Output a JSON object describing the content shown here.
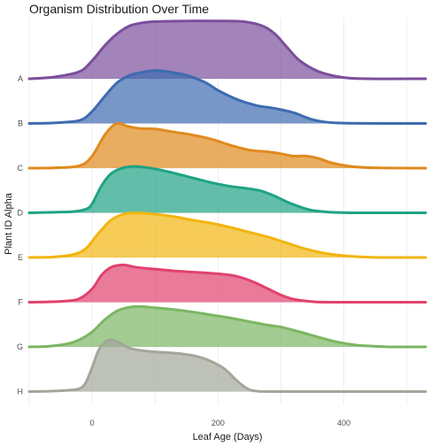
{
  "chart_data": {
    "type": "area",
    "subtype": "ridgeline",
    "title": "Organism Distribution Over Time",
    "xlabel": "Leaf Age (Days)",
    "ylabel": "Plant ID Alpha",
    "xlim": [
      -100,
      530
    ],
    "x_ticks": [
      0,
      200,
      400
    ],
    "grid": true,
    "legend": "none",
    "series": [
      {
        "name": "A",
        "color": "#7B4E9C",
        "points": [
          [
            -100,
            0
          ],
          [
            -60,
            0.03
          ],
          [
            -20,
            0.12
          ],
          [
            0,
            0.3
          ],
          [
            20,
            0.55
          ],
          [
            40,
            0.75
          ],
          [
            60,
            0.88
          ],
          [
            80,
            0.93
          ],
          [
            100,
            0.95
          ],
          [
            150,
            0.96
          ],
          [
            200,
            0.96
          ],
          [
            240,
            0.95
          ],
          [
            270,
            0.88
          ],
          [
            290,
            0.75
          ],
          [
            310,
            0.52
          ],
          [
            330,
            0.3
          ],
          [
            360,
            0.12
          ],
          [
            400,
            0.02
          ],
          [
            440,
            0
          ],
          [
            530,
            0
          ]
        ]
      },
      {
        "name": "B",
        "color": "#3D6BB0",
        "points": [
          [
            -100,
            0
          ],
          [
            -60,
            0.01
          ],
          [
            -20,
            0.05
          ],
          [
            0,
            0.2
          ],
          [
            20,
            0.45
          ],
          [
            40,
            0.68
          ],
          [
            60,
            0.8
          ],
          [
            80,
            0.85
          ],
          [
            100,
            0.88
          ],
          [
            120,
            0.86
          ],
          [
            150,
            0.8
          ],
          [
            180,
            0.68
          ],
          [
            200,
            0.55
          ],
          [
            230,
            0.4
          ],
          [
            260,
            0.3
          ],
          [
            290,
            0.25
          ],
          [
            320,
            0.18
          ],
          [
            340,
            0.1
          ],
          [
            360,
            0.04
          ],
          [
            400,
            0.005
          ],
          [
            530,
            0
          ]
        ]
      },
      {
        "name": "C",
        "color": "#E08A1E",
        "points": [
          [
            -100,
            0
          ],
          [
            -60,
            0.005
          ],
          [
            -20,
            0.04
          ],
          [
            0,
            0.2
          ],
          [
            20,
            0.55
          ],
          [
            35,
            0.72
          ],
          [
            45,
            0.74
          ],
          [
            55,
            0.7
          ],
          [
            75,
            0.66
          ],
          [
            100,
            0.65
          ],
          [
            130,
            0.6
          ],
          [
            160,
            0.55
          ],
          [
            190,
            0.48
          ],
          [
            220,
            0.38
          ],
          [
            250,
            0.3
          ],
          [
            280,
            0.27
          ],
          [
            300,
            0.24
          ],
          [
            320,
            0.2
          ],
          [
            340,
            0.2
          ],
          [
            360,
            0.16
          ],
          [
            380,
            0.09
          ],
          [
            410,
            0.03
          ],
          [
            450,
            0.005
          ],
          [
            530,
            0
          ]
        ]
      },
      {
        "name": "D",
        "color": "#1FA384",
        "points": [
          [
            -100,
            0
          ],
          [
            -60,
            0.01
          ],
          [
            -30,
            0.02
          ],
          [
            -10,
            0.06
          ],
          [
            0,
            0.15
          ],
          [
            15,
            0.45
          ],
          [
            30,
            0.65
          ],
          [
            50,
            0.75
          ],
          [
            70,
            0.77
          ],
          [
            100,
            0.73
          ],
          [
            130,
            0.66
          ],
          [
            160,
            0.58
          ],
          [
            190,
            0.5
          ],
          [
            220,
            0.44
          ],
          [
            250,
            0.4
          ],
          [
            270,
            0.36
          ],
          [
            290,
            0.28
          ],
          [
            310,
            0.18
          ],
          [
            330,
            0.1
          ],
          [
            350,
            0.04
          ],
          [
            380,
            0.01
          ],
          [
            420,
            0
          ],
          [
            530,
            0
          ]
        ]
      },
      {
        "name": "E",
        "color": "#F2B50F",
        "points": [
          [
            -100,
            0
          ],
          [
            -60,
            0.01
          ],
          [
            -30,
            0.05
          ],
          [
            -10,
            0.15
          ],
          [
            10,
            0.4
          ],
          [
            30,
            0.62
          ],
          [
            50,
            0.72
          ],
          [
            70,
            0.74
          ],
          [
            100,
            0.72
          ],
          [
            130,
            0.68
          ],
          [
            160,
            0.62
          ],
          [
            190,
            0.57
          ],
          [
            220,
            0.5
          ],
          [
            250,
            0.42
          ],
          [
            280,
            0.34
          ],
          [
            310,
            0.24
          ],
          [
            340,
            0.14
          ],
          [
            370,
            0.07
          ],
          [
            400,
            0.03
          ],
          [
            430,
            0.01
          ],
          [
            470,
            0
          ],
          [
            530,
            0
          ]
        ]
      },
      {
        "name": "F",
        "color": "#E0426E",
        "points": [
          [
            -100,
            0
          ],
          [
            -70,
            0.005
          ],
          [
            -40,
            0.02
          ],
          [
            -20,
            0.06
          ],
          [
            0,
            0.22
          ],
          [
            15,
            0.45
          ],
          [
            30,
            0.58
          ],
          [
            50,
            0.62
          ],
          [
            70,
            0.58
          ],
          [
            100,
            0.55
          ],
          [
            130,
            0.52
          ],
          [
            160,
            0.5
          ],
          [
            190,
            0.48
          ],
          [
            220,
            0.45
          ],
          [
            240,
            0.4
          ],
          [
            260,
            0.32
          ],
          [
            280,
            0.22
          ],
          [
            300,
            0.12
          ],
          [
            320,
            0.05
          ],
          [
            350,
            0.01
          ],
          [
            380,
            0
          ],
          [
            530,
            0
          ]
        ]
      },
      {
        "name": "G",
        "color": "#7BB662",
        "points": [
          [
            -100,
            0
          ],
          [
            -70,
            0.01
          ],
          [
            -40,
            0.05
          ],
          [
            -20,
            0.12
          ],
          [
            0,
            0.25
          ],
          [
            20,
            0.45
          ],
          [
            40,
            0.6
          ],
          [
            60,
            0.66
          ],
          [
            80,
            0.67
          ],
          [
            100,
            0.65
          ],
          [
            130,
            0.62
          ],
          [
            160,
            0.58
          ],
          [
            190,
            0.53
          ],
          [
            220,
            0.48
          ],
          [
            250,
            0.42
          ],
          [
            280,
            0.36
          ],
          [
            300,
            0.33
          ],
          [
            330,
            0.25
          ],
          [
            360,
            0.16
          ],
          [
            390,
            0.08
          ],
          [
            420,
            0.03
          ],
          [
            450,
            0.01
          ],
          [
            480,
            0
          ],
          [
            530,
            0
          ]
        ]
      },
      {
        "name": "H",
        "color": "#A3A69A",
        "points": [
          [
            -100,
            0
          ],
          [
            -70,
            0.005
          ],
          [
            -40,
            0.02
          ],
          [
            -20,
            0.05
          ],
          [
            -10,
            0.15
          ],
          [
            0,
            0.4
          ],
          [
            10,
            0.68
          ],
          [
            20,
            0.82
          ],
          [
            30,
            0.86
          ],
          [
            45,
            0.8
          ],
          [
            60,
            0.72
          ],
          [
            80,
            0.68
          ],
          [
            100,
            0.66
          ],
          [
            130,
            0.64
          ],
          [
            160,
            0.6
          ],
          [
            185,
            0.52
          ],
          [
            210,
            0.38
          ],
          [
            230,
            0.18
          ],
          [
            245,
            0.06
          ],
          [
            260,
            0.01
          ],
          [
            300,
            0
          ],
          [
            530,
            0
          ]
        ]
      }
    ]
  }
}
